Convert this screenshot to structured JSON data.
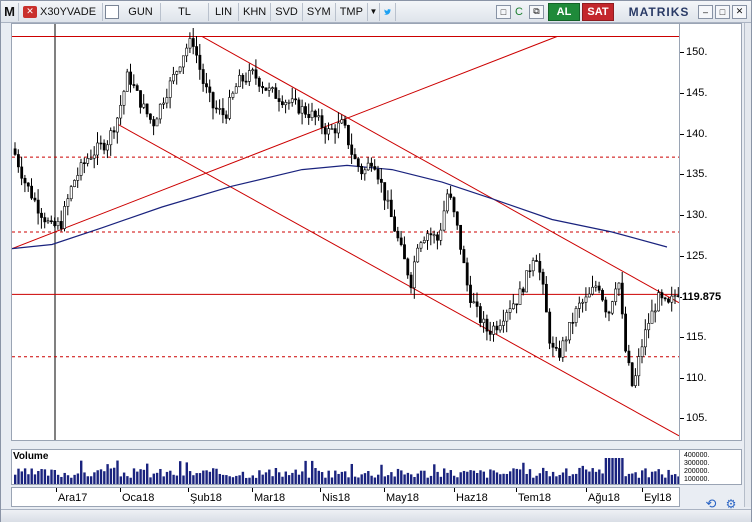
{
  "toolbar": {
    "menu_label": "M",
    "symbol": "X30YVADE",
    "period": "GUN",
    "currency": "TL",
    "scale": "LIN",
    "khn": "KHN",
    "svd": "SVD",
    "sym": "SYM",
    "tmp": "TMP",
    "dropdown_icon": "▼",
    "twitter_icon": "twitter-bird",
    "al_label": "AL",
    "sat_label": "SAT",
    "brand": "MATRIKS",
    "c_icon": "C"
  },
  "price_axis": {
    "ticks": [
      "150.",
      "145.",
      "140.",
      "135.",
      "130.",
      "125.",
      "115.",
      "110.",
      "105."
    ],
    "current": "119.875"
  },
  "time_axis": {
    "labels": [
      "Ara17",
      "Oca18",
      "Şub18",
      "Mar18",
      "Nis18",
      "May18",
      "Haz18",
      "Tem18",
      "Ağu18",
      "Eyl18"
    ]
  },
  "volume": {
    "label": "Volume",
    "ticks": [
      "400000.",
      "300000.",
      "200000.",
      "100000."
    ]
  },
  "colors": {
    "candles": "#000000",
    "trendlines": "#cc0000",
    "moving_average": "#1a237e",
    "volume_bars": "#1a237e"
  },
  "chart_data": {
    "type": "candlestick",
    "ylim": [
      102,
      152
    ],
    "moving_average_curve": [
      [
        0,
        125
      ],
      [
        40,
        125.5
      ],
      [
        90,
        127.5
      ],
      [
        150,
        130
      ],
      [
        220,
        132.5
      ],
      [
        290,
        134.5
      ],
      [
        335,
        135
      ],
      [
        380,
        134.5
      ],
      [
        430,
        133
      ],
      [
        480,
        131
      ],
      [
        540,
        128.5
      ],
      [
        600,
        127
      ],
      [
        655,
        125.2
      ]
    ],
    "close_path": [
      [
        0,
        137
      ],
      [
        12,
        133
      ],
      [
        25,
        130
      ],
      [
        38,
        127.5
      ],
      [
        48,
        128
      ],
      [
        60,
        133
      ],
      [
        75,
        136
      ],
      [
        95,
        138
      ],
      [
        105,
        141
      ],
      [
        115,
        146
      ],
      [
        122,
        144
      ],
      [
        130,
        142
      ],
      [
        140,
        140
      ],
      [
        150,
        143
      ],
      [
        162,
        146
      ],
      [
        172,
        149
      ],
      [
        180,
        150
      ],
      [
        190,
        145
      ],
      [
        200,
        142
      ],
      [
        212,
        141
      ],
      [
        225,
        145
      ],
      [
        240,
        146
      ],
      [
        255,
        144
      ],
      [
        270,
        143
      ],
      [
        285,
        142
      ],
      [
        300,
        141
      ],
      [
        315,
        139
      ],
      [
        330,
        140
      ],
      [
        340,
        136
      ],
      [
        350,
        134
      ],
      [
        360,
        136
      ],
      [
        370,
        132
      ],
      [
        380,
        128
      ],
      [
        390,
        124
      ],
      [
        398,
        121
      ],
      [
        405,
        126
      ],
      [
        415,
        127
      ],
      [
        425,
        126
      ],
      [
        435,
        132
      ],
      [
        445,
        127
      ],
      [
        455,
        120
      ],
      [
        465,
        117
      ],
      [
        475,
        115
      ],
      [
        485,
        116
      ],
      [
        495,
        118
      ],
      [
        505,
        119
      ],
      [
        515,
        122
      ],
      [
        522,
        125
      ],
      [
        530,
        120
      ],
      [
        538,
        113
      ],
      [
        545,
        112
      ],
      [
        555,
        115
      ],
      [
        565,
        118
      ],
      [
        575,
        119
      ],
      [
        585,
        121
      ],
      [
        595,
        117
      ],
      [
        605,
        122
      ],
      [
        612,
        113
      ],
      [
        620,
        108
      ],
      [
        628,
        113
      ],
      [
        635,
        116
      ],
      [
        645,
        119
      ],
      [
        655,
        118
      ],
      [
        665,
        120
      ]
    ],
    "red_horizontal_lines": [
      150.5,
      119.5
    ],
    "dotted_horizontal_lines": [
      136,
      127,
      112
    ]
  }
}
